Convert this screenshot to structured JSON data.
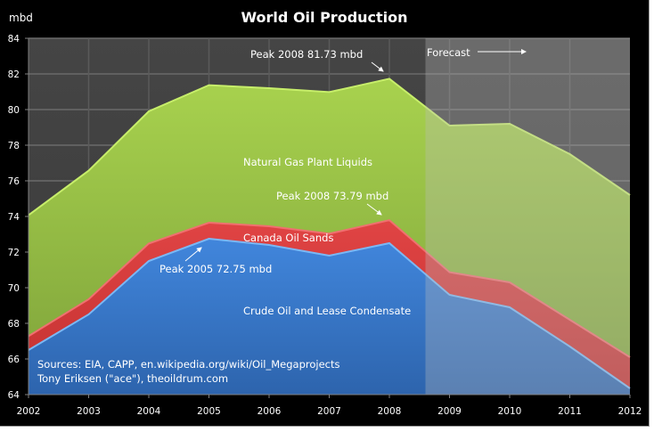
{
  "chart_data": {
    "type": "area",
    "stacked": true,
    "title": "World Oil Production",
    "ylabel": "mbd",
    "xlabel": "",
    "ylim": [
      64,
      84
    ],
    "xlim": [
      2002,
      2012
    ],
    "yticks": [
      64,
      66,
      68,
      70,
      72,
      74,
      76,
      78,
      80,
      82,
      84
    ],
    "x": [
      2002,
      2003,
      2004,
      2005,
      2006,
      2007,
      2008,
      2009,
      2010,
      2011,
      2012
    ],
    "grid": true,
    "forecast_start": 2008.6,
    "series": [
      {
        "name": "Crude Oil and Lease Condensate",
        "color": "#3a7fd5",
        "values": [
          66.5,
          68.5,
          71.5,
          72.75,
          72.4,
          71.8,
          72.5,
          69.6,
          68.9,
          66.7,
          64.35
        ],
        "cumulative_top": [
          66.5,
          68.5,
          71.5,
          72.75,
          72.4,
          71.8,
          72.5,
          69.6,
          68.9,
          66.7,
          64.35
        ]
      },
      {
        "name": "Canada Oil Sands",
        "color": "#d83b3b",
        "values": [
          0.78,
          0.85,
          0.98,
          0.9,
          1.05,
          1.23,
          1.29,
          1.27,
          1.4,
          1.5,
          1.75
        ],
        "cumulative_top": [
          67.28,
          69.35,
          72.48,
          73.65,
          73.45,
          73.03,
          73.79,
          70.87,
          70.3,
          68.2,
          66.1
        ]
      },
      {
        "name": "Natural Gas Plant Liquids",
        "color": "#9cc64a",
        "values": [
          6.79,
          7.22,
          7.42,
          7.72,
          7.75,
          7.95,
          7.94,
          8.23,
          8.9,
          9.3,
          9.1
        ],
        "cumulative_top": [
          74.07,
          76.57,
          79.9,
          81.37,
          81.2,
          80.98,
          81.73,
          79.1,
          79.2,
          77.5,
          75.2
        ]
      }
    ],
    "annotations": [
      {
        "text": "Peak 2008 81.73 mbd",
        "x": 2008,
        "y": 81.73
      },
      {
        "text": "Peak 2008 73.79 mbd",
        "x": 2008,
        "y": 73.79
      },
      {
        "text": "Peak 2005 72.75 mbd",
        "x": 2005,
        "y": 72.75
      },
      {
        "text": "Forecast",
        "arrow": "right"
      }
    ],
    "series_labels": {
      "ngl": "Natural Gas Plant Liquids",
      "sands": "Canada Oil Sands",
      "crude": "Crude Oil and Lease Condensate"
    },
    "sources": [
      "Sources: EIA, CAPP, en.wikipedia.org/wiki/Oil_Megaprojects",
      "Tony Eriksen (\"ace\"), theoildrum.com"
    ]
  }
}
